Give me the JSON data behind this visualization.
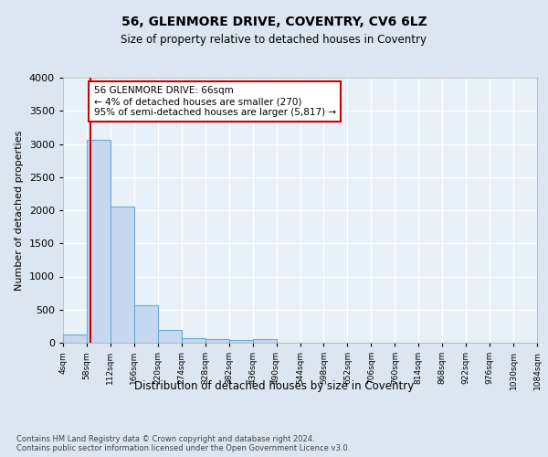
{
  "title": "56, GLENMORE DRIVE, COVENTRY, CV6 6LZ",
  "subtitle": "Size of property relative to detached houses in Coventry",
  "xlabel": "Distribution of detached houses by size in Coventry",
  "ylabel": "Number of detached properties",
  "bar_color": "#c5d8ef",
  "bar_edge_color": "#6aaad4",
  "vline_color": "#cc0000",
  "vline_x": 66,
  "annotation_text": "56 GLENMORE DRIVE: 66sqm\n← 4% of detached houses are smaller (270)\n95% of semi-detached houses are larger (5,817) →",
  "annotation_box_color": "#ffffff",
  "annotation_box_edge_color": "#cc0000",
  "footer_text": "Contains HM Land Registry data © Crown copyright and database right 2024.\nContains public sector information licensed under the Open Government Licence v3.0.",
  "background_color": "#dce6f0",
  "plot_background_color": "#e8f0f8",
  "grid_color": "#ffffff",
  "bin_edges": [
    4,
    58,
    112,
    166,
    220,
    274,
    328,
    382,
    436,
    490,
    544,
    598,
    652,
    706,
    760,
    814,
    868,
    922,
    976,
    1030,
    1084
  ],
  "bar_heights": [
    130,
    3060,
    2060,
    560,
    195,
    75,
    55,
    45,
    50,
    0,
    0,
    0,
    0,
    0,
    0,
    0,
    0,
    0,
    0,
    0
  ],
  "ylim": [
    0,
    4000
  ],
  "yticks": [
    0,
    500,
    1000,
    1500,
    2000,
    2500,
    3000,
    3500,
    4000
  ]
}
